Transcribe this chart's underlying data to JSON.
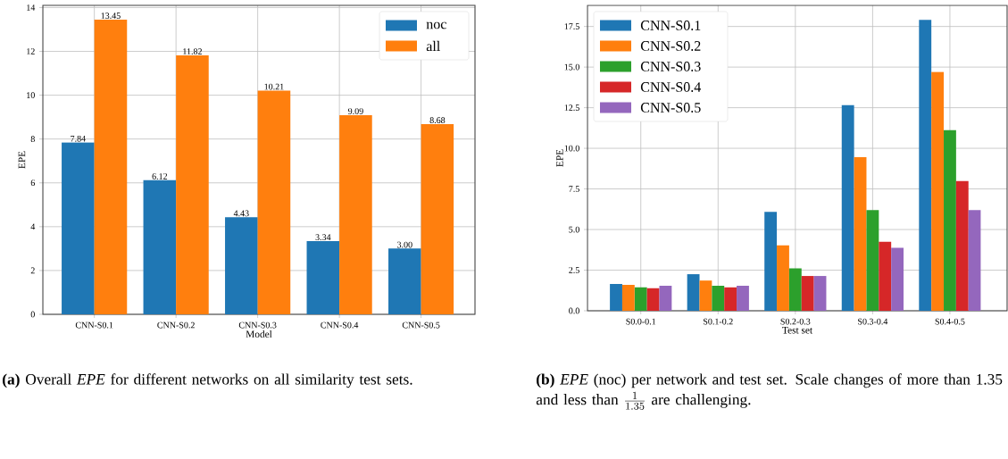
{
  "chart_data": [
    {
      "type": "bar",
      "xlabel": "Model",
      "ylabel": "EPE",
      "categories": [
        "CNN-S0.1",
        "CNN-S0.2",
        "CNN-S0.3",
        "CNN-S0.4",
        "CNN-S0.5"
      ],
      "series": [
        {
          "name": "noc",
          "color": "#1f77b4",
          "values": [
            7.84,
            6.12,
            4.43,
            3.34,
            3.0
          ],
          "value_labels": [
            "7.84",
            "6.12",
            "4.43",
            "3.34",
            "3.00"
          ]
        },
        {
          "name": "all",
          "color": "#ff7f0e",
          "values": [
            13.45,
            11.82,
            10.21,
            9.09,
            8.68
          ],
          "value_labels": [
            "13.45",
            "11.82",
            "10.21",
            "9.09",
            "8.68"
          ]
        }
      ],
      "ylim": [
        0,
        14.1
      ],
      "yticks": [
        0,
        2,
        4,
        6,
        8,
        10,
        12,
        14
      ],
      "grid": true,
      "legend": "top right",
      "annotations": [
        "**(a)** Overall *EPE* for different networks on all similarity test sets."
      ]
    },
    {
      "type": "bar",
      "xlabel": "Test set",
      "ylabel": "EPE",
      "categories": [
        "S0.0-0.1",
        "S0.1-0.2",
        "S0.2-0.3",
        "S0.3-0.4",
        "S0.4-0.5"
      ],
      "series": [
        {
          "name": "CNN-S0.1",
          "color": "#1f77b4",
          "values": [
            1.65,
            2.25,
            6.09,
            12.65,
            17.9
          ]
        },
        {
          "name": "CNN-S0.2",
          "color": "#ff7f0e",
          "values": [
            1.59,
            1.86,
            4.02,
            9.45,
            14.7
          ]
        },
        {
          "name": "CNN-S0.3",
          "color": "#2ca02c",
          "values": [
            1.44,
            1.54,
            2.61,
            6.2,
            11.12
          ]
        },
        {
          "name": "CNN-S0.4",
          "color": "#d62728",
          "values": [
            1.39,
            1.44,
            2.14,
            4.24,
            7.99
          ]
        },
        {
          "name": "CNN-S0.5",
          "color": "#9467bd",
          "values": [
            1.54,
            1.54,
            2.14,
            3.88,
            6.2
          ]
        }
      ],
      "ylim": [
        0,
        18.8
      ],
      "yticks": [
        {
          "value": 0,
          "label": "0.0"
        },
        {
          "value": 2.5,
          "label": "2.5"
        },
        {
          "value": 5,
          "label": "5.0"
        },
        {
          "value": 7.5,
          "label": "7.5"
        },
        {
          "value": 10,
          "label": "10.0"
        },
        {
          "value": 12.5,
          "label": "12.5"
        },
        {
          "value": 15,
          "label": "15.0"
        },
        {
          "value": 17.5,
          "label": "17.5"
        }
      ],
      "grid": true,
      "legend": "top left",
      "annotations": [
        "**(b)** *EPE* (noc) per network and test set. Scale changes of more than 1.35 and less than",
        "\\frac{1}{1.35}",
        "are challenging."
      ]
    }
  ]
}
